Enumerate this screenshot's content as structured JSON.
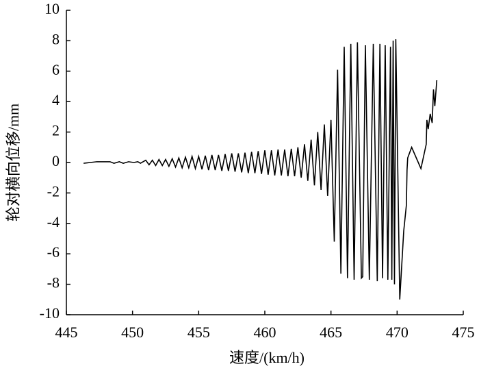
{
  "chart_data": {
    "type": "line",
    "x_label": "速度/(km/h)",
    "y_label": "轮对横向位移/mm",
    "color": "#000000",
    "xlim": [
      445,
      475
    ],
    "xticks": [
      445,
      450,
      455,
      460,
      465,
      470,
      475
    ],
    "ylim": [
      -10,
      10
    ],
    "yticks": [
      -10,
      -8,
      -6,
      -4,
      -2,
      0,
      2,
      4,
      6,
      8,
      10
    ],
    "x": [
      446.3,
      446.8,
      447.3,
      447.8,
      448.3,
      448.6,
      449.0,
      449.3,
      449.7,
      450.1,
      450.4,
      450.6,
      451.0,
      451.25,
      451.5,
      451.75,
      452.0,
      452.25,
      452.5,
      452.75,
      453.0,
      453.25,
      453.5,
      453.75,
      454.0,
      454.25,
      454.5,
      454.75,
      455.0,
      455.25,
      455.5,
      455.75,
      456.0,
      456.25,
      456.5,
      456.75,
      457.0,
      457.25,
      457.5,
      457.75,
      458.0,
      458.25,
      458.5,
      458.75,
      459.0,
      459.25,
      459.5,
      459.75,
      460.0,
      460.25,
      460.5,
      460.75,
      461.0,
      461.25,
      461.5,
      461.75,
      462.0,
      462.25,
      462.5,
      462.75,
      463.0,
      463.25,
      463.5,
      463.75,
      464.0,
      464.25,
      464.5,
      464.75,
      465.0,
      465.25,
      465.5,
      465.75,
      466.0,
      466.25,
      466.5,
      466.75,
      467.0,
      467.3,
      467.4,
      467.6,
      467.9,
      468.2,
      468.5,
      468.7,
      468.9,
      469.1,
      469.3,
      469.5,
      469.6,
      469.7,
      469.8,
      469.9,
      470.2,
      470.5,
      470.7,
      470.75,
      470.8,
      471.1,
      471.8,
      472.2,
      472.25,
      472.35,
      472.5,
      472.65,
      472.75,
      472.85,
      473.0
    ],
    "values": [
      -0.05,
      0.0,
      0.05,
      0.05,
      0.05,
      -0.05,
      0.05,
      -0.05,
      0.05,
      0.0,
      0.05,
      -0.05,
      0.15,
      -0.15,
      0.15,
      -0.2,
      0.2,
      -0.2,
      0.2,
      -0.25,
      0.25,
      -0.3,
      0.3,
      -0.35,
      0.35,
      -0.35,
      0.4,
      -0.4,
      0.4,
      -0.45,
      0.45,
      -0.5,
      0.5,
      -0.5,
      0.5,
      -0.55,
      0.55,
      -0.55,
      0.6,
      -0.6,
      0.6,
      -0.65,
      0.65,
      -0.7,
      0.7,
      -0.7,
      0.75,
      -0.75,
      0.8,
      -0.8,
      0.8,
      -0.85,
      0.85,
      -0.85,
      0.85,
      -0.9,
      0.9,
      -0.9,
      1.0,
      -1.0,
      1.2,
      -1.2,
      1.5,
      -1.5,
      2.0,
      -1.8,
      2.5,
      -2.2,
      2.8,
      -5.2,
      6.1,
      -7.3,
      7.6,
      -7.6,
      7.8,
      -7.7,
      7.9,
      -7.6,
      -7.5,
      7.7,
      -7.7,
      7.8,
      -7.8,
      7.8,
      -7.6,
      7.7,
      -7.7,
      7.6,
      -7.7,
      8.0,
      -8.0,
      8.1,
      -9.0,
      -4.5,
      -2.8,
      -0.5,
      0.3,
      1.0,
      -0.4,
      1.2,
      2.8,
      2.2,
      3.2,
      2.6,
      4.8,
      3.7,
      5.4
    ]
  }
}
